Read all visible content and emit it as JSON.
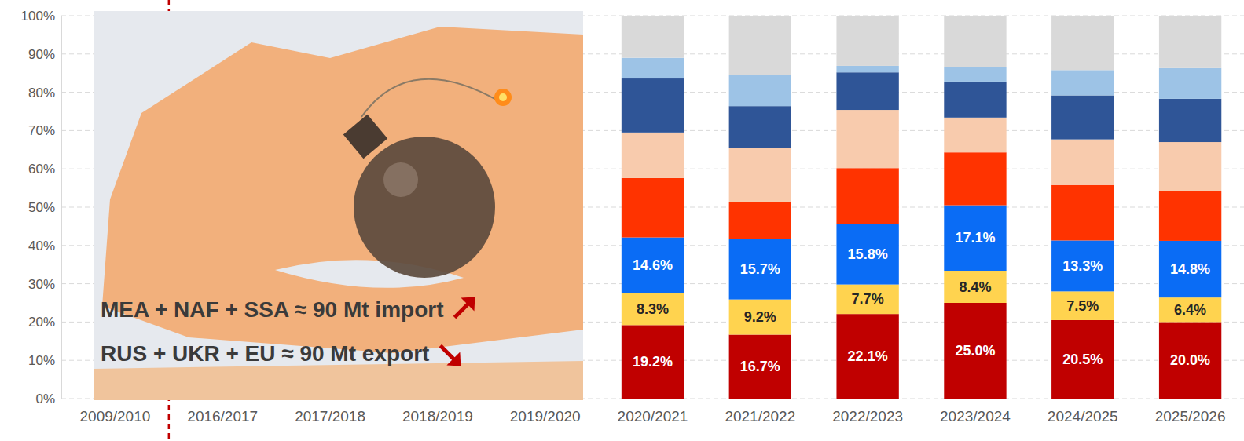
{
  "chart_data": {
    "type": "bar",
    "stacked": true,
    "grid": true,
    "data_labels": true,
    "categories": [
      "2009/2010",
      "2016/2017",
      "2017/2018",
      "2018/2019",
      "2019/2020",
      "2020/2021",
      "2021/2022",
      "2022/2023",
      "2023/2024",
      "2024/2025",
      "2025/2026"
    ],
    "ylim": [
      0,
      100
    ],
    "yticks": [
      {
        "value": 0,
        "label": "0%"
      },
      {
        "value": 10,
        "label": "10%"
      },
      {
        "value": 20,
        "label": "20%"
      },
      {
        "value": 30,
        "label": "30%"
      },
      {
        "value": 40,
        "label": "40%"
      },
      {
        "value": 50,
        "label": "50%"
      },
      {
        "value": 60,
        "label": "60%"
      },
      {
        "value": 70,
        "label": "70%"
      },
      {
        "value": 80,
        "label": "80%"
      },
      {
        "value": 90,
        "label": "90%"
      },
      {
        "value": 100,
        "label": "100%"
      }
    ],
    "series": [
      {
        "color": "#C00000",
        "values": [
          null,
          null,
          null,
          null,
          null,
          19.2,
          16.7,
          22.1,
          25.0,
          20.5,
          20.0
        ],
        "value_labels": [
          null,
          null,
          null,
          null,
          null,
          "19.2%",
          "16.7%",
          "22.1%",
          "25.0%",
          "20.5%",
          "20.0%"
        ]
      },
      {
        "color": "#FFD34F",
        "values": [
          null,
          null,
          null,
          null,
          null,
          8.3,
          9.2,
          7.7,
          8.4,
          7.5,
          6.4
        ],
        "value_labels": [
          null,
          null,
          null,
          null,
          null,
          "8.3%",
          "9.2%",
          "7.7%",
          "8.4%",
          "7.5%",
          "6.4%"
        ]
      },
      {
        "color": "#0A6CF5",
        "values": [
          null,
          null,
          null,
          null,
          null,
          14.6,
          15.7,
          15.8,
          17.1,
          13.3,
          14.8
        ],
        "value_labels": [
          null,
          null,
          null,
          null,
          null,
          "14.6%",
          "15.7%",
          "15.8%",
          "17.1%",
          "13.3%",
          "14.8%"
        ]
      },
      {
        "color": "#FF3300",
        "values": [
          null,
          null,
          null,
          null,
          null,
          15.5,
          9.8,
          14.6,
          13.8,
          14.5,
          13.1
        ]
      },
      {
        "color": "#F8CBAD",
        "values": [
          null,
          null,
          null,
          null,
          null,
          11.9,
          14.0,
          15.2,
          9.1,
          11.9,
          12.7
        ]
      },
      {
        "color": "#2F5597",
        "values": [
          null,
          null,
          null,
          null,
          null,
          14.1,
          11.0,
          9.8,
          9.4,
          11.5,
          11.3
        ]
      },
      {
        "color": "#9DC3E6",
        "values": [
          null,
          null,
          null,
          null,
          null,
          5.4,
          8.2,
          1.7,
          3.7,
          6.6,
          8.0
        ]
      },
      {
        "color": "#D9D9D9",
        "values": [
          null,
          null,
          null,
          null,
          null,
          11.0,
          15.4,
          13.1,
          13.5,
          14.2,
          13.7
        ]
      }
    ],
    "annotations": [
      {
        "text": "MEA + NAF + SSA ≈ 90 Mt import"
      },
      {
        "text": "RUS + UKR + EU ≈ 90 Mt export"
      }
    ]
  }
}
